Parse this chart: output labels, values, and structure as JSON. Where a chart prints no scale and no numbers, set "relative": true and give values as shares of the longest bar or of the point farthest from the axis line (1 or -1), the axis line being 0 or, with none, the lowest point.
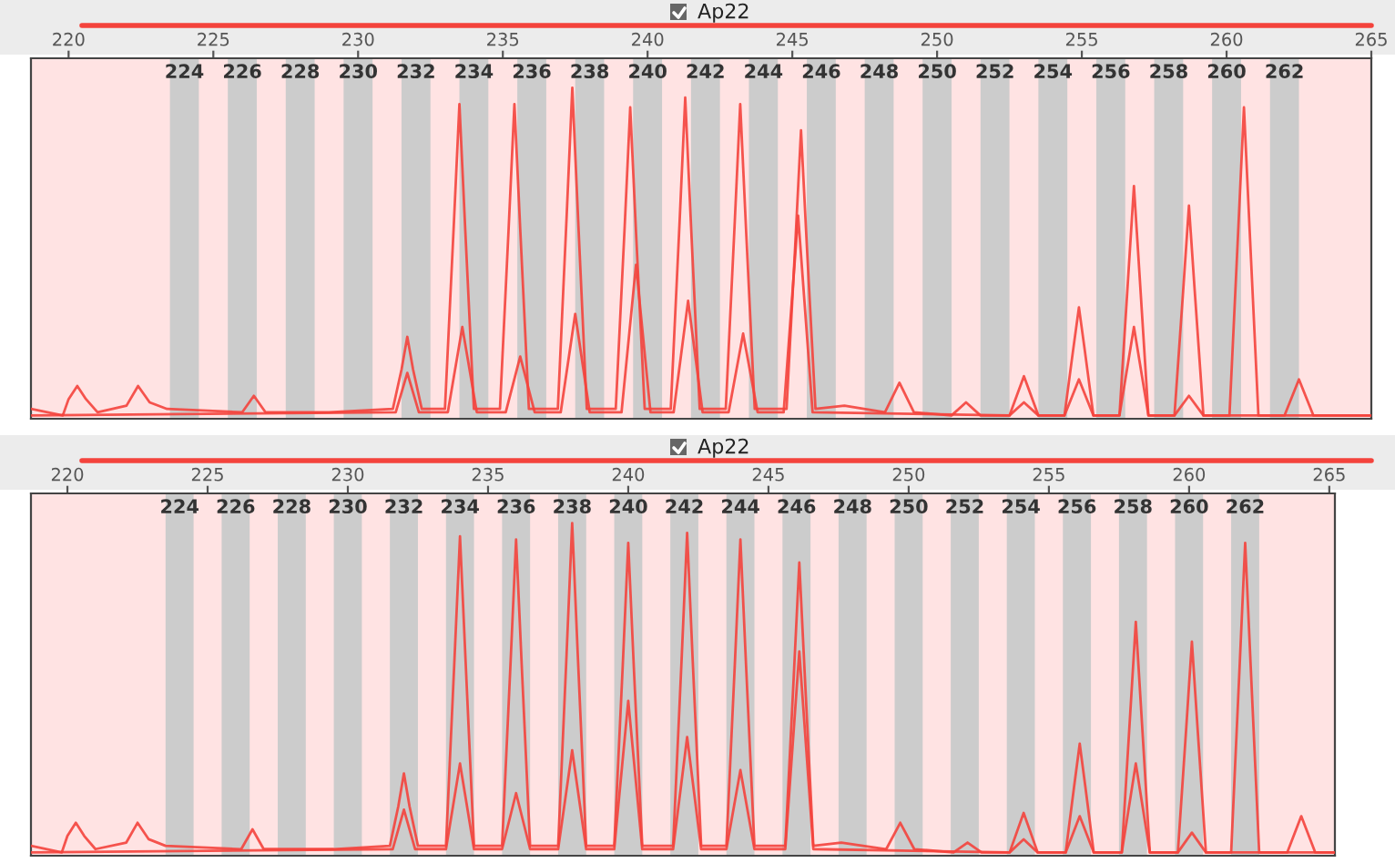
{
  "chart_data": [
    {
      "type": "line",
      "title": "Ap22",
      "relative": true,
      "grid": false,
      "legend": false,
      "xlim": [
        218.7,
        265.0
      ],
      "xticks": [
        220,
        225,
        230,
        235,
        240,
        245,
        250,
        255,
        260,
        265
      ],
      "bands": [
        {
          "axis": "x",
          "from": 223.5,
          "to": 224.5,
          "label": "224",
          "color": "#cccccc"
        },
        {
          "axis": "x",
          "from": 225.5,
          "to": 226.5,
          "label": "226",
          "color": "#cccccc"
        },
        {
          "axis": "x",
          "from": 227.5,
          "to": 228.5,
          "label": "228",
          "color": "#cccccc"
        },
        {
          "axis": "x",
          "from": 229.5,
          "to": 230.5,
          "label": "230",
          "color": "#cccccc"
        },
        {
          "axis": "x",
          "from": 231.5,
          "to": 232.5,
          "label": "232",
          "color": "#cccccc"
        },
        {
          "axis": "x",
          "from": 233.5,
          "to": 234.5,
          "label": "234",
          "color": "#cccccc"
        },
        {
          "axis": "x",
          "from": 235.5,
          "to": 236.5,
          "label": "236",
          "color": "#cccccc"
        },
        {
          "axis": "x",
          "from": 237.5,
          "to": 238.5,
          "label": "238",
          "color": "#cccccc"
        },
        {
          "axis": "x",
          "from": 239.5,
          "to": 240.5,
          "label": "240",
          "color": "#cccccc"
        },
        {
          "axis": "x",
          "from": 241.5,
          "to": 242.5,
          "label": "242",
          "color": "#cccccc"
        },
        {
          "axis": "x",
          "from": 243.5,
          "to": 244.5,
          "label": "244",
          "color": "#cccccc"
        },
        {
          "axis": "x",
          "from": 245.5,
          "to": 246.5,
          "label": "246",
          "color": "#cccccc"
        },
        {
          "axis": "x",
          "from": 247.5,
          "to": 248.5,
          "label": "248",
          "color": "#cccccc"
        },
        {
          "axis": "x",
          "from": 249.5,
          "to": 250.5,
          "label": "250",
          "color": "#cccccc"
        },
        {
          "axis": "x",
          "from": 251.5,
          "to": 252.5,
          "label": "252",
          "color": "#cccccc"
        },
        {
          "axis": "x",
          "from": 253.5,
          "to": 254.5,
          "label": "254",
          "color": "#cccccc"
        },
        {
          "axis": "x",
          "from": 255.5,
          "to": 256.5,
          "label": "256",
          "color": "#cccccc"
        },
        {
          "axis": "x",
          "from": 257.5,
          "to": 258.5,
          "label": "258",
          "color": "#cccccc"
        },
        {
          "axis": "x",
          "from": 259.5,
          "to": 260.5,
          "label": "260",
          "color": "#cccccc"
        },
        {
          "axis": "x",
          "from": 261.5,
          "to": 262.5,
          "label": "262",
          "color": "#cccccc"
        }
      ],
      "series": [
        {
          "color": "#f4433c",
          "x": [
            218.7,
            219.8,
            220.0,
            220.3,
            220.6,
            221.0,
            222.0,
            222.4,
            222.8,
            223.4,
            226.0,
            226.4,
            226.8,
            229.0,
            231.2,
            231.5,
            231.7,
            231.9,
            232.2,
            233.0,
            233.3,
            233.5,
            233.7,
            234.0,
            234.9,
            235.2,
            235.4,
            235.6,
            235.9,
            236.9,
            237.2,
            237.4,
            237.6,
            237.9,
            238.9,
            239.2,
            239.4,
            239.6,
            239.9,
            240.8,
            241.1,
            241.3,
            241.5,
            241.8,
            242.7,
            243.0,
            243.2,
            243.4,
            243.7,
            244.8,
            245.1,
            245.3,
            245.5,
            245.8,
            246.8,
            248.2,
            248.7,
            249.2,
            250.5,
            251.0,
            251.5,
            252.5,
            253.0,
            253.5,
            254.4,
            254.7,
            254.9,
            255.1,
            255.4,
            256.3,
            256.6,
            256.8,
            257.0,
            257.3,
            258.2,
            258.5,
            258.7,
            258.9,
            259.2,
            260.1,
            260.4,
            260.6,
            260.8,
            261.1,
            262.0,
            262.5,
            263.0,
            265.0
          ],
          "values": [
            0.02,
            0,
            0.05,
            0.09,
            0.05,
            0.01,
            0.03,
            0.09,
            0.04,
            0.02,
            0.01,
            0.06,
            0.01,
            0.01,
            0.02,
            0.14,
            0.24,
            0.14,
            0.02,
            0.02,
            0.57,
            0.95,
            0.57,
            0.02,
            0.02,
            0.57,
            0.95,
            0.57,
            0.02,
            0.02,
            0.6,
            1,
            0.6,
            0.02,
            0.02,
            0.56,
            0.94,
            0.56,
            0.02,
            0.02,
            0.58,
            0.97,
            0.58,
            0.02,
            0.02,
            0.57,
            0.95,
            0.57,
            0.02,
            0.02,
            0.52,
            0.87,
            0.52,
            0.02,
            0.03,
            0.01,
            0.1,
            0.01,
            0,
            0.04,
            0,
            0,
            0.12,
            0,
            0,
            0.2,
            0.33,
            0.2,
            0,
            0,
            0.42,
            0.7,
            0.42,
            0,
            0,
            0.38,
            0.64,
            0.38,
            0,
            0,
            0.56,
            0.94,
            0.56,
            0,
            0,
            0.11,
            0,
            0
          ]
        },
        {
          "color": "#f4433c",
          "x": [
            218.7,
            231.3,
            231.7,
            232.1,
            233.1,
            233.6,
            234.1,
            235.1,
            235.6,
            236.1,
            237.0,
            237.5,
            238.0,
            239.1,
            239.6,
            240.1,
            240.9,
            241.4,
            241.9,
            242.8,
            243.3,
            243.8,
            244.7,
            245.2,
            245.7,
            252.5,
            253.0,
            253.5,
            254.4,
            254.9,
            255.4,
            256.3,
            256.8,
            257.3,
            258.2,
            258.7,
            259.2,
            265.0
          ],
          "values": [
            0,
            0.01,
            0.13,
            0.01,
            0.01,
            0.27,
            0.01,
            0.01,
            0.18,
            0.01,
            0.01,
            0.31,
            0.01,
            0.01,
            0.46,
            0.01,
            0.01,
            0.35,
            0.01,
            0.01,
            0.25,
            0.01,
            0.01,
            0.61,
            0.01,
            0,
            0.04,
            0,
            0,
            0.11,
            0,
            0,
            0.27,
            0,
            0,
            0.06,
            0,
            0
          ]
        }
      ]
    },
    {
      "type": "line",
      "title": "Ap22",
      "relative": true,
      "grid": false,
      "legend": false,
      "xlim": [
        218.7,
        265.2
      ],
      "xticks": [
        220,
        225,
        230,
        235,
        240,
        245,
        250,
        255,
        260,
        265
      ],
      "bands": [
        {
          "axis": "x",
          "from": 223.5,
          "to": 224.5,
          "label": "224",
          "color": "#cccccc"
        },
        {
          "axis": "x",
          "from": 225.5,
          "to": 226.5,
          "label": "226",
          "color": "#cccccc"
        },
        {
          "axis": "x",
          "from": 227.5,
          "to": 228.5,
          "label": "228",
          "color": "#cccccc"
        },
        {
          "axis": "x",
          "from": 229.5,
          "to": 230.5,
          "label": "230",
          "color": "#cccccc"
        },
        {
          "axis": "x",
          "from": 231.5,
          "to": 232.5,
          "label": "232",
          "color": "#cccccc"
        },
        {
          "axis": "x",
          "from": 233.5,
          "to": 234.5,
          "label": "234",
          "color": "#cccccc"
        },
        {
          "axis": "x",
          "from": 235.5,
          "to": 236.5,
          "label": "236",
          "color": "#cccccc"
        },
        {
          "axis": "x",
          "from": 237.5,
          "to": 238.5,
          "label": "238",
          "color": "#cccccc"
        },
        {
          "axis": "x",
          "from": 239.5,
          "to": 240.5,
          "label": "240",
          "color": "#cccccc"
        },
        {
          "axis": "x",
          "from": 241.5,
          "to": 242.5,
          "label": "242",
          "color": "#cccccc"
        },
        {
          "axis": "x",
          "from": 243.5,
          "to": 244.5,
          "label": "244",
          "color": "#cccccc"
        },
        {
          "axis": "x",
          "from": 245.5,
          "to": 246.5,
          "label": "246",
          "color": "#cccccc"
        },
        {
          "axis": "x",
          "from": 247.5,
          "to": 248.5,
          "label": "248",
          "color": "#cccccc"
        },
        {
          "axis": "x",
          "from": 249.5,
          "to": 250.5,
          "label": "250",
          "color": "#cccccc"
        },
        {
          "axis": "x",
          "from": 251.5,
          "to": 252.5,
          "label": "252",
          "color": "#cccccc"
        },
        {
          "axis": "x",
          "from": 253.5,
          "to": 254.5,
          "label": "254",
          "color": "#cccccc"
        },
        {
          "axis": "x",
          "from": 255.5,
          "to": 256.5,
          "label": "256",
          "color": "#cccccc"
        },
        {
          "axis": "x",
          "from": 257.5,
          "to": 258.5,
          "label": "258",
          "color": "#cccccc"
        },
        {
          "axis": "x",
          "from": 259.5,
          "to": 260.5,
          "label": "260",
          "color": "#cccccc"
        },
        {
          "axis": "x",
          "from": 261.5,
          "to": 262.5,
          "label": "262",
          "color": "#cccccc"
        }
      ],
      "series": [
        {
          "color": "#f4433c",
          "x": [
            218.7,
            219.8,
            220.0,
            220.3,
            220.6,
            221.0,
            222.1,
            222.5,
            222.9,
            223.5,
            226.2,
            226.6,
            227.0,
            229.5,
            231.5,
            231.8,
            232.0,
            232.2,
            232.5,
            233.5,
            233.8,
            234.0,
            234.2,
            234.5,
            235.5,
            235.8,
            236.0,
            236.2,
            236.5,
            237.5,
            237.8,
            238.0,
            238.2,
            238.5,
            239.5,
            239.8,
            240.0,
            240.2,
            240.5,
            241.6,
            241.9,
            242.1,
            242.3,
            242.6,
            243.5,
            243.8,
            244.0,
            244.2,
            244.5,
            245.6,
            245.9,
            246.1,
            246.3,
            246.6,
            247.6,
            249.2,
            249.7,
            250.2,
            251.6,
            252.1,
            252.6,
            253.6,
            254.1,
            254.6,
            255.6,
            255.9,
            256.1,
            256.3,
            256.6,
            257.6,
            257.9,
            258.1,
            258.3,
            258.6,
            259.6,
            259.9,
            260.1,
            260.3,
            260.6,
            261.5,
            261.8,
            262.0,
            262.2,
            262.5,
            263.5,
            264.0,
            264.5,
            265.2
          ],
          "values": [
            0.02,
            0,
            0.05,
            0.09,
            0.05,
            0.01,
            0.03,
            0.09,
            0.04,
            0.02,
            0.01,
            0.07,
            0.01,
            0.01,
            0.02,
            0.14,
            0.24,
            0.14,
            0.02,
            0.02,
            0.58,
            0.96,
            0.58,
            0.02,
            0.02,
            0.57,
            0.95,
            0.57,
            0.02,
            0.02,
            0.6,
            1,
            0.6,
            0.02,
            0.02,
            0.56,
            0.94,
            0.56,
            0.02,
            0.02,
            0.58,
            0.97,
            0.58,
            0.02,
            0.02,
            0.57,
            0.95,
            0.57,
            0.02,
            0.02,
            0.53,
            0.88,
            0.53,
            0.02,
            0.03,
            0.01,
            0.09,
            0.01,
            0,
            0.03,
            0,
            0,
            0.12,
            0,
            0,
            0.2,
            0.33,
            0.2,
            0,
            0,
            0.42,
            0.7,
            0.42,
            0,
            0,
            0.38,
            0.64,
            0.38,
            0,
            0,
            0.56,
            0.94,
            0.56,
            0,
            0,
            0.11,
            0,
            0
          ]
        },
        {
          "color": "#f4433c",
          "x": [
            218.7,
            231.6,
            232.0,
            232.4,
            233.5,
            234.0,
            234.5,
            235.5,
            236.0,
            236.5,
            237.5,
            238.0,
            238.5,
            239.5,
            240.0,
            240.5,
            241.6,
            242.1,
            242.6,
            243.5,
            244.0,
            244.5,
            245.6,
            246.1,
            246.6,
            253.6,
            254.1,
            254.6,
            255.6,
            256.1,
            256.6,
            257.6,
            258.1,
            258.6,
            259.6,
            260.1,
            260.6,
            265.2
          ],
          "values": [
            0,
            0.01,
            0.13,
            0.01,
            0.01,
            0.27,
            0.01,
            0.01,
            0.18,
            0.01,
            0.01,
            0.31,
            0.01,
            0.01,
            0.46,
            0.01,
            0.01,
            0.35,
            0.01,
            0.01,
            0.25,
            0.01,
            0.01,
            0.61,
            0.01,
            0,
            0.04,
            0,
            0,
            0.11,
            0,
            0,
            0.27,
            0,
            0,
            0.06,
            0,
            0
          ]
        }
      ]
    }
  ]
}
